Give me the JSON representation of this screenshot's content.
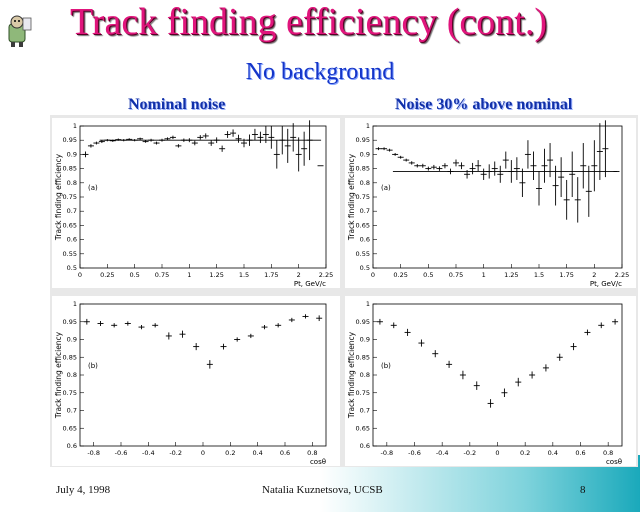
{
  "slide": {
    "title": "Track finding efficiency (cont.)",
    "subtitle": "No background",
    "left_heading": "Nominal noise",
    "right_heading": "Noise 30% above nominal",
    "footer_date": "July 4, 1998",
    "footer_author": "Natalia Kuznetsova, UCSB",
    "page_number": "8"
  },
  "chart_data": [
    {
      "type": "scatter",
      "title": "",
      "panel_label": "(a)",
      "xlabel": "Pt, GeV/c",
      "ylabel": "Track finding efficiency",
      "xlim": [
        0,
        2.25
      ],
      "ylim": [
        0.5,
        1
      ],
      "x_ticks": [
        "0",
        "0.25",
        "0.5",
        "0.75",
        "1",
        "1.25",
        "1.5",
        "1.75",
        "2",
        "2.25"
      ],
      "y_ticks": [
        "0.5",
        "0.55",
        "0.6",
        "0.65",
        "0.7",
        "0.75",
        "0.8",
        "0.85",
        "0.9",
        "0.95",
        "1"
      ],
      "fit_level": 0.95,
      "x": [
        0.05,
        0.1,
        0.15,
        0.2,
        0.25,
        0.3,
        0.35,
        0.4,
        0.45,
        0.5,
        0.55,
        0.6,
        0.65,
        0.7,
        0.75,
        0.8,
        0.85,
        0.9,
        0.95,
        1.0,
        1.05,
        1.1,
        1.15,
        1.2,
        1.25,
        1.3,
        1.35,
        1.4,
        1.45,
        1.5,
        1.55,
        1.6,
        1.65,
        1.7,
        1.75,
        1.8,
        1.85,
        1.9,
        1.95,
        2.0,
        2.05,
        2.1,
        2.2
      ],
      "y": [
        0.9,
        0.93,
        0.94,
        0.945,
        0.95,
        0.948,
        0.952,
        0.95,
        0.953,
        0.95,
        0.955,
        0.945,
        0.95,
        0.94,
        0.95,
        0.955,
        0.96,
        0.93,
        0.95,
        0.95,
        0.94,
        0.96,
        0.965,
        0.94,
        0.95,
        0.92,
        0.97,
        0.975,
        0.955,
        0.94,
        0.95,
        0.97,
        0.96,
        0.97,
        0.96,
        0.9,
        0.95,
        0.93,
        0.96,
        0.9,
        0.92,
        0.95,
        0.86
      ],
      "err": [
        0.01,
        0.006,
        0.005,
        0.005,
        0.004,
        0.004,
        0.004,
        0.004,
        0.004,
        0.004,
        0.004,
        0.004,
        0.005,
        0.005,
        0.005,
        0.005,
        0.006,
        0.006,
        0.006,
        0.007,
        0.008,
        0.008,
        0.009,
        0.01,
        0.01,
        0.011,
        0.012,
        0.013,
        0.014,
        0.015,
        0.02,
        0.02,
        0.02,
        0.03,
        0.04,
        0.05,
        0.05,
        0.06,
        0.05,
        0.06,
        0.06,
        0.07,
        0.0
      ]
    },
    {
      "type": "scatter",
      "title": "",
      "panel_label": "(a)",
      "xlabel": "Pt, GeV/c",
      "ylabel": "Track finding efficiency",
      "xlim": [
        0,
        2.25
      ],
      "ylim": [
        0.5,
        1
      ],
      "x_ticks": [
        "0",
        "0.25",
        "0.5",
        "0.75",
        "1",
        "1.25",
        "1.5",
        "1.75",
        "2",
        "2.25"
      ],
      "y_ticks": [
        "0.5",
        "0.55",
        "0.6",
        "0.65",
        "0.7",
        "0.75",
        "0.8",
        "0.85",
        "0.9",
        "0.95",
        "1"
      ],
      "fit_level": 0.84,
      "x": [
        0.05,
        0.1,
        0.15,
        0.2,
        0.25,
        0.3,
        0.35,
        0.4,
        0.45,
        0.5,
        0.55,
        0.6,
        0.65,
        0.7,
        0.75,
        0.8,
        0.85,
        0.9,
        0.95,
        1.0,
        1.05,
        1.1,
        1.15,
        1.2,
        1.25,
        1.3,
        1.35,
        1.4,
        1.45,
        1.5,
        1.55,
        1.6,
        1.65,
        1.7,
        1.75,
        1.8,
        1.85,
        1.9,
        1.95,
        2.0,
        2.05,
        2.1,
        2.2
      ],
      "y": [
        0.92,
        0.92,
        0.915,
        0.9,
        0.89,
        0.88,
        0.87,
        0.86,
        0.86,
        0.85,
        0.855,
        0.85,
        0.86,
        0.84,
        0.87,
        0.86,
        0.83,
        0.85,
        0.86,
        0.83,
        0.84,
        0.85,
        0.83,
        0.88,
        0.84,
        0.85,
        0.8,
        0.9,
        0.86,
        0.78,
        0.86,
        0.88,
        0.79,
        0.82,
        0.74,
        0.83,
        0.74,
        0.86,
        0.77,
        0.86,
        0.91,
        0.92,
        0.84
      ],
      "err": [
        0.005,
        0.005,
        0.005,
        0.005,
        0.005,
        0.005,
        0.006,
        0.006,
        0.007,
        0.007,
        0.008,
        0.008,
        0.009,
        0.01,
        0.012,
        0.012,
        0.015,
        0.02,
        0.02,
        0.02,
        0.025,
        0.025,
        0.03,
        0.03,
        0.04,
        0.04,
        0.05,
        0.05,
        0.05,
        0.06,
        0.06,
        0.06,
        0.07,
        0.07,
        0.07,
        0.08,
        0.08,
        0.08,
        0.09,
        0.09,
        0.1,
        0.1,
        0.0
      ]
    },
    {
      "type": "scatter",
      "title": "",
      "panel_label": "(b)",
      "xlabel": "cosθ",
      "ylabel": "Track finding efficiency",
      "xlim": [
        -0.9,
        0.9
      ],
      "ylim": [
        0.6,
        1
      ],
      "x_ticks": [
        "-0.8",
        "-0.6",
        "-0.4",
        "-0.2",
        "0",
        "0.2",
        "0.4",
        "0.6",
        "0.8"
      ],
      "y_ticks": [
        "0.6",
        "0.65",
        "0.7",
        "0.75",
        "0.8",
        "0.85",
        "0.9",
        "0.95",
        "1"
      ],
      "x": [
        -0.85,
        -0.75,
        -0.65,
        -0.55,
        -0.45,
        -0.35,
        -0.25,
        -0.15,
        -0.05,
        0.05,
        0.15,
        0.25,
        0.35,
        0.45,
        0.55,
        0.65,
        0.75,
        0.85
      ],
      "y": [
        0.95,
        0.945,
        0.94,
        0.945,
        0.935,
        0.94,
        0.91,
        0.915,
        0.88,
        0.83,
        0.88,
        0.9,
        0.91,
        0.935,
        0.94,
        0.955,
        0.965,
        0.96
      ],
      "err": [
        0.008,
        0.007,
        0.006,
        0.006,
        0.006,
        0.006,
        0.01,
        0.01,
        0.01,
        0.012,
        0.008,
        0.006,
        0.006,
        0.006,
        0.006,
        0.006,
        0.006,
        0.008
      ]
    },
    {
      "type": "scatter",
      "title": "",
      "panel_label": "(b)",
      "xlabel": "cosθ",
      "ylabel": "Track finding efficiency",
      "xlim": [
        -0.9,
        0.9
      ],
      "ylim": [
        0.6,
        1
      ],
      "x_ticks": [
        "-0.8",
        "-0.6",
        "-0.4",
        "-0.2",
        "0",
        "0.2",
        "0.4",
        "0.6",
        "0.8"
      ],
      "y_ticks": [
        "0.6",
        "0.65",
        "0.7",
        "0.75",
        "0.8",
        "0.85",
        "0.9",
        "0.95",
        "1"
      ],
      "x": [
        -0.85,
        -0.75,
        -0.65,
        -0.55,
        -0.45,
        -0.35,
        -0.25,
        -0.15,
        -0.05,
        0.05,
        0.15,
        0.25,
        0.35,
        0.45,
        0.55,
        0.65,
        0.75,
        0.85
      ],
      "y": [
        0.95,
        0.94,
        0.92,
        0.89,
        0.86,
        0.83,
        0.8,
        0.77,
        0.72,
        0.75,
        0.78,
        0.8,
        0.82,
        0.85,
        0.88,
        0.92,
        0.94,
        0.95
      ],
      "err": [
        0.008,
        0.008,
        0.01,
        0.01,
        0.01,
        0.01,
        0.012,
        0.012,
        0.012,
        0.012,
        0.012,
        0.01,
        0.01,
        0.01,
        0.01,
        0.008,
        0.008,
        0.008
      ]
    }
  ]
}
